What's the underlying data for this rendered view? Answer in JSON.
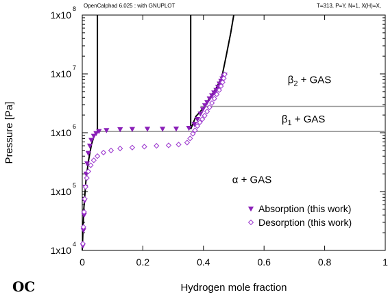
{
  "header": {
    "left": "OpenCalphad   6.025 : with GNUPLOT",
    "right": "T=313, P=Y,  N=1, X(H)=X,"
  },
  "logo": "OC",
  "chart_data": {
    "type": "scatter",
    "title": "",
    "xlabel": "Hydrogen mole fraction",
    "ylabel": "Pressure [Pa]",
    "xlim": [
      0,
      1
    ],
    "ylim_log10": [
      4,
      8
    ],
    "y_scale": "log",
    "grid": false,
    "legend_position": "bottom-right",
    "x_ticks": [
      {
        "v": 0,
        "label": "0"
      },
      {
        "v": 0.2,
        "label": "0.2"
      },
      {
        "v": 0.4,
        "label": "0.4"
      },
      {
        "v": 0.6,
        "label": "0.6"
      },
      {
        "v": 0.8,
        "label": "0.8"
      },
      {
        "v": 1,
        "label": "1"
      }
    ],
    "y_ticks": [
      {
        "exp": 4,
        "base": "1x10",
        "sup": "4"
      },
      {
        "exp": 5,
        "base": "1x10",
        "sup": "5"
      },
      {
        "exp": 6,
        "base": "1x10",
        "sup": "6"
      },
      {
        "exp": 7,
        "base": "1x10",
        "sup": "7"
      },
      {
        "exp": 8,
        "base": "1x10",
        "sup": "8"
      }
    ],
    "region_labels": [
      {
        "text": "β",
        "sub": "2",
        "rest": " + GAS",
        "x": 0.75,
        "p": 7000000.0
      },
      {
        "text": "β",
        "sub": "1",
        "rest": " + GAS",
        "x": 0.73,
        "p": 1500000.0
      },
      {
        "text": "α + GAS",
        "sub": "",
        "rest": "",
        "x": 0.56,
        "p": 140000.0
      }
    ],
    "phase_lines": [
      {
        "name": "",
        "color": "#000000",
        "points": [
          [
            0.0,
            10000.0
          ],
          [
            0.005,
            50000.0
          ],
          [
            0.012,
            150000.0
          ],
          [
            0.02,
            320000.0
          ],
          [
            0.03,
            620000.0
          ],
          [
            0.04,
            920000.0
          ],
          [
            0.05,
            1050000.0
          ],
          [
            0.05,
            100000000.0
          ]
        ]
      },
      {
        "name": "",
        "color": "#000000",
        "points": [
          [
            0.358,
            100000000.0
          ],
          [
            0.358,
            1150000.0
          ],
          [
            0.375,
            1900000.0
          ],
          [
            0.39,
            2300000.0
          ]
        ]
      },
      {
        "name": "",
        "color": "#000000",
        "points": [
          [
            0.39,
            2300000.0
          ],
          [
            0.41,
            3200000.0
          ],
          [
            0.44,
            5500000.0
          ],
          [
            0.46,
            8500000.0
          ],
          [
            0.475,
            20000000.0
          ],
          [
            0.49,
            50000000.0
          ],
          [
            0.5,
            100000000.0
          ]
        ]
      },
      {
        "name": "",
        "color": "#999999",
        "points": [
          [
            0.05,
            1050000.0
          ],
          [
            1.0,
            1050000.0
          ]
        ]
      },
      {
        "name": "",
        "color": "#999999",
        "points": [
          [
            0.39,
            2800000.0
          ],
          [
            1.0,
            2800000.0
          ]
        ]
      }
    ],
    "series": [
      {
        "name": "Absorption (this work)",
        "marker": "triangle-down",
        "color": "#8a1fb8",
        "x": [
          0.002,
          0.004,
          0.006,
          0.008,
          0.01,
          0.013,
          0.016,
          0.02,
          0.025,
          0.03,
          0.038,
          0.046,
          0.055,
          0.08,
          0.125,
          0.165,
          0.215,
          0.265,
          0.31,
          0.352,
          0.37,
          0.38,
          0.39,
          0.398,
          0.405,
          0.412,
          0.42,
          0.428,
          0.435,
          0.442,
          0.448,
          0.453,
          0.458,
          0.462,
          0.466,
          0.47
        ],
        "y": [
          12000.0,
          22000.0,
          40000.0,
          70000.0,
          120000.0,
          200000.0,
          300000.0,
          450000.0,
          600000.0,
          750000.0,
          880000.0,
          980000.0,
          1060000.0,
          1100000.0,
          1140000.0,
          1150000.0,
          1160000.0,
          1160000.0,
          1170000.0,
          1200000.0,
          1400000.0,
          1700000.0,
          2100000.0,
          2500000.0,
          2900000.0,
          3300000.0,
          3800000.0,
          4300000.0,
          4800000.0,
          5300000.0,
          6000000.0,
          6800000.0,
          7600000.0,
          8300000.0,
          9000000.0,
          9600000.0
        ]
      },
      {
        "name": "Desorption (this work)",
        "marker": "diamond-open",
        "color": "#a040d0",
        "x": [
          0.002,
          0.004,
          0.006,
          0.008,
          0.011,
          0.015,
          0.02,
          0.028,
          0.038,
          0.05,
          0.07,
          0.095,
          0.125,
          0.165,
          0.205,
          0.245,
          0.285,
          0.318,
          0.346,
          0.356,
          0.365,
          0.372,
          0.38,
          0.388,
          0.396,
          0.404,
          0.412,
          0.42,
          0.428,
          0.436,
          0.444,
          0.452,
          0.458,
          0.463,
          0.467,
          0.47
        ],
        "y": [
          13000.0,
          25000.0,
          45000.0,
          75000.0,
          120000.0,
          170000.0,
          220000.0,
          280000.0,
          340000.0,
          400000.0,
          460000.0,
          500000.0,
          540000.0,
          560000.0,
          580000.0,
          600000.0,
          610000.0,
          630000.0,
          680000.0,
          800000.0,
          960000.0,
          1100000.0,
          1300000.0,
          1500000.0,
          1700000.0,
          1950000.0,
          2300000.0,
          2700000.0,
          3200000.0,
          3800000.0,
          4500000.0,
          5300000.0,
          6200000.0,
          7200000.0,
          8400000.0,
          9800000.0
        ]
      }
    ]
  }
}
